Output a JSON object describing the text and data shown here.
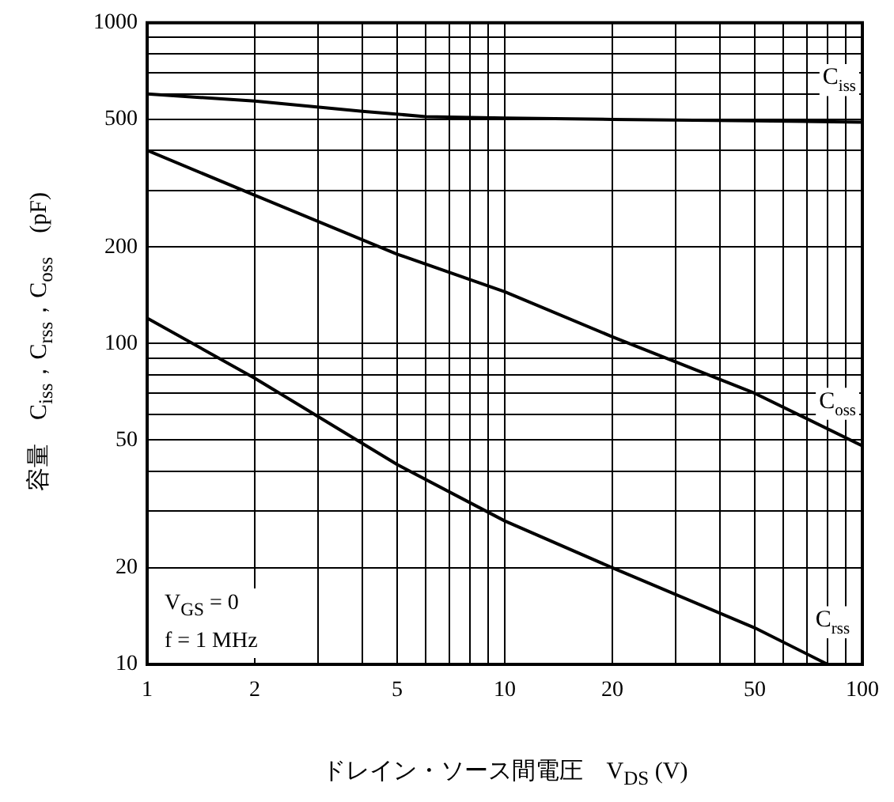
{
  "chart_data": {
    "type": "line",
    "xlabel": "ドレイン・ソース間電圧　V$_{DS}$ (V)",
    "ylabel": "容量　C$_{iss}$，C$_{rss}$，C$_{oss}$　(pF)",
    "log": "xy",
    "grid": true,
    "legend": false,
    "marker": "none",
    "line_style": "solid",
    "xlim": [
      1,
      100
    ],
    "ylim": [
      10,
      1000
    ],
    "xticks": [
      1,
      2,
      {
        "value": 3,
        "label": null
      },
      {
        "value": 4,
        "label": null
      },
      5,
      {
        "value": 6,
        "label": null
      },
      {
        "value": 7,
        "label": null
      },
      {
        "value": 8,
        "label": null
      },
      {
        "value": 9,
        "label": null
      },
      10,
      20,
      {
        "value": 30,
        "label": null
      },
      {
        "value": 40,
        "label": null
      },
      50,
      {
        "value": 60,
        "label": null
      },
      {
        "value": 70,
        "label": null
      },
      {
        "value": 80,
        "label": null
      },
      {
        "value": 90,
        "label": null
      },
      100
    ],
    "yticks": [
      10,
      20,
      {
        "value": 30,
        "label": null
      },
      {
        "value": 40,
        "label": null
      },
      50,
      {
        "value": 60,
        "label": null
      },
      {
        "value": 70,
        "label": null
      },
      {
        "value": 80,
        "label": null
      },
      {
        "value": 90,
        "label": null
      },
      100,
      200,
      {
        "value": 300,
        "label": null
      },
      {
        "value": 400,
        "label": null
      },
      500,
      {
        "value": 600,
        "label": null
      },
      {
        "value": 700,
        "label": null
      },
      {
        "value": 800,
        "label": null
      },
      {
        "value": 900,
        "label": null
      },
      1000
    ],
    "series": [
      {
        "name": "C$_{iss}$",
        "color": "#000000",
        "x": [
          1,
          2,
          4,
          6,
          10,
          20,
          50,
          100
        ],
        "values": [
          600,
          570,
          530,
          510,
          505,
          500,
          495,
          490
        ]
      },
      {
        "name": "C$_{oss}$",
        "color": "#000000",
        "x": [
          1,
          2,
          5,
          10,
          20,
          50,
          100
        ],
        "values": [
          400,
          290,
          190,
          145,
          105,
          70,
          48
        ]
      },
      {
        "name": "C$_{rss}$",
        "color": "#000000",
        "x": [
          1,
          2,
          5,
          10,
          20,
          50,
          80
        ],
        "values": [
          120,
          78,
          42,
          28,
          20,
          13,
          10
        ]
      }
    ],
    "annotations": [
      "V$_{GS}$ = 0",
      "f = 1 MHz"
    ]
  }
}
